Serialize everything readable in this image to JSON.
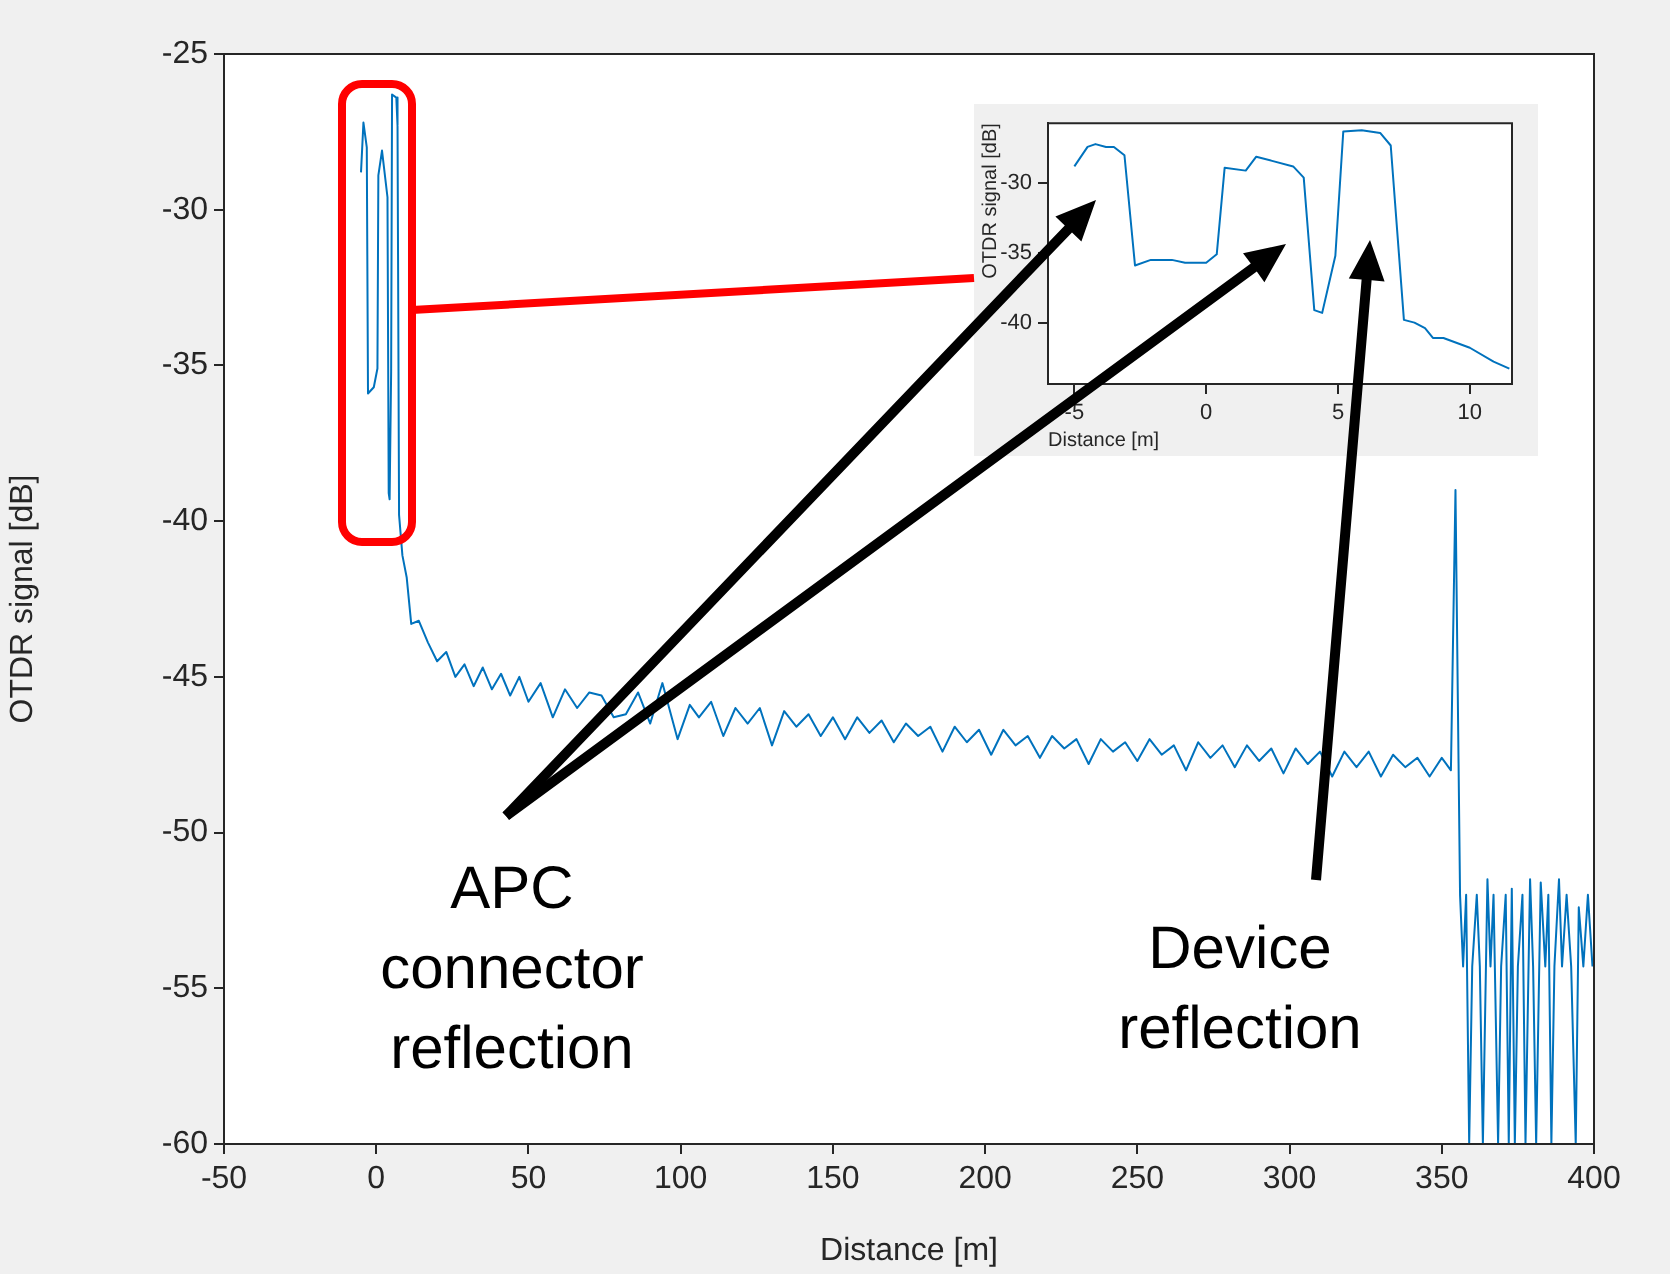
{
  "chart_data": [
    {
      "type": "line",
      "xlabel": "Distance [m]",
      "ylabel": "OTDR signal [dB]",
      "xlim": [
        -50,
        400
      ],
      "ylim": [
        -60,
        -25
      ],
      "xticks": [
        -50,
        0,
        50,
        100,
        150,
        200,
        250,
        300,
        350,
        400
      ],
      "yticks": [
        -60,
        -55,
        -50,
        -45,
        -40,
        -35,
        -30,
        -25
      ],
      "legend": false,
      "annotations": [
        "APC connector reflection",
        "Device reflection"
      ],
      "x": [
        -5,
        -4.2,
        -3.1,
        -2.7,
        -0.8,
        0.4,
        0.7,
        1.9,
        3.7,
        4.1,
        4.4,
        4.9,
        5.2,
        6.6,
        7.0,
        7.5,
        8.6,
        10,
        11.5,
        14,
        17,
        20,
        23,
        26,
        29,
        32,
        35,
        38,
        41,
        44,
        47,
        50,
        54,
        58,
        62,
        66,
        70,
        74,
        78,
        82,
        86,
        90,
        94,
        99,
        103,
        106,
        110,
        114,
        118,
        122,
        126,
        130,
        134,
        138,
        142,
        146,
        150,
        154,
        158,
        162,
        166,
        170,
        174,
        178,
        182,
        186,
        190,
        194,
        198,
        202,
        206,
        210,
        214,
        218,
        222,
        226,
        230,
        234,
        238,
        242,
        246,
        250,
        254,
        258,
        262,
        266,
        270,
        274,
        278,
        282,
        286,
        290,
        294,
        298,
        302,
        306,
        310,
        314,
        318,
        322,
        326,
        330,
        334,
        338,
        342,
        346,
        350,
        353,
        354.5,
        356,
        357,
        358,
        359,
        360,
        361.5,
        362.5,
        363.5,
        365,
        366,
        367,
        368.5,
        369.5,
        371,
        372,
        373,
        374,
        375,
        376.5,
        377.5,
        379,
        380,
        381,
        382.5,
        384,
        385,
        386,
        387,
        388.5,
        389.5,
        391,
        392.5,
        394,
        395,
        396.5,
        398,
        399.5
      ],
      "series": [
        {
          "color": "#0072bd",
          "values": [
            -28.8,
            -27.2,
            -28,
            -35.9,
            -35.7,
            -35.1,
            -28.9,
            -28.1,
            -29.6,
            -39.1,
            -39.3,
            -35.2,
            -26.3,
            -26.4,
            -27.3,
            -39.8,
            -41.1,
            -41.8,
            -43.3,
            -43.2,
            -43.9,
            -44.5,
            -44.2,
            -45.0,
            -44.6,
            -45.3,
            -44.7,
            -45.4,
            -44.9,
            -45.6,
            -45.0,
            -45.8,
            -45.2,
            -46.3,
            -45.4,
            -46.0,
            -45.5,
            -45.6,
            -46.3,
            -46.2,
            -45.5,
            -46.5,
            -45.2,
            -47.0,
            -45.9,
            -46.3,
            -45.8,
            -46.9,
            -46.0,
            -46.5,
            -46.0,
            -47.2,
            -46.1,
            -46.6,
            -46.2,
            -46.9,
            -46.3,
            -47.0,
            -46.3,
            -46.8,
            -46.4,
            -47.1,
            -46.5,
            -46.9,
            -46.6,
            -47.4,
            -46.6,
            -47.1,
            -46.7,
            -47.5,
            -46.7,
            -47.2,
            -46.9,
            -47.6,
            -46.9,
            -47.3,
            -47.0,
            -47.8,
            -47.0,
            -47.4,
            -47.1,
            -47.7,
            -47.0,
            -47.5,
            -47.2,
            -48.0,
            -47.1,
            -47.6,
            -47.2,
            -47.9,
            -47.2,
            -47.7,
            -47.3,
            -48.1,
            -47.3,
            -47.8,
            -47.4,
            -48.2,
            -47.4,
            -47.9,
            -47.4,
            -48.2,
            -47.5,
            -47.9,
            -47.6,
            -48.2,
            -47.6,
            -48.0,
            -39,
            -52.0,
            -54.3,
            -52.0,
            -60,
            -54.3,
            -52,
            -54.3,
            -60,
            -51.5,
            -54.3,
            -52,
            -60,
            -54.3,
            -52,
            -60,
            -51.8,
            -60,
            -54.3,
            -52,
            -60,
            -51.5,
            -54.3,
            -60,
            -51.6,
            -54.3,
            -52,
            -60,
            -54.3,
            -51.5,
            -54.3,
            -52,
            -54.3,
            -60,
            -52.4,
            -54.3,
            -52.0,
            -54.3
          ]
        }
      ]
    },
    {
      "type": "line",
      "xlabel": "Distance [m]",
      "ylabel": "OTDR signal [dB]",
      "xlim": [
        -6,
        11.6
      ],
      "ylim": [
        -44.4,
        -25.7
      ],
      "xticks": [
        -5,
        0,
        5,
        10
      ],
      "yticks": [
        -40,
        -35,
        -30
      ],
      "legend": false,
      "x": [
        -5,
        -4.5,
        -4.2,
        -3.8,
        -3.5,
        -3.1,
        -2.7,
        -2.1,
        -1.3,
        -0.8,
        0,
        0.4,
        0.7,
        1.5,
        1.9,
        2.5,
        3.3,
        3.7,
        4.1,
        4.4,
        4.9,
        5.2,
        5.9,
        6.6,
        7.0,
        7.5,
        7.9,
        8.3,
        8.6,
        9.0,
        10,
        10.9,
        11.5
      ],
      "series": [
        {
          "color": "#0072bd",
          "values": [
            -28.8,
            -27.4,
            -27.2,
            -27.4,
            -27.4,
            -28.0,
            -35.9,
            -35.5,
            -35.5,
            -35.7,
            -35.7,
            -35.1,
            -28.9,
            -29.1,
            -28.1,
            -28.4,
            -28.8,
            -29.6,
            -39.1,
            -39.3,
            -35.2,
            -26.3,
            -26.2,
            -26.4,
            -27.3,
            -39.8,
            -40.0,
            -40.4,
            -41.1,
            -41.1,
            -41.8,
            -42.8,
            -43.3
          ]
        }
      ]
    }
  ]
}
